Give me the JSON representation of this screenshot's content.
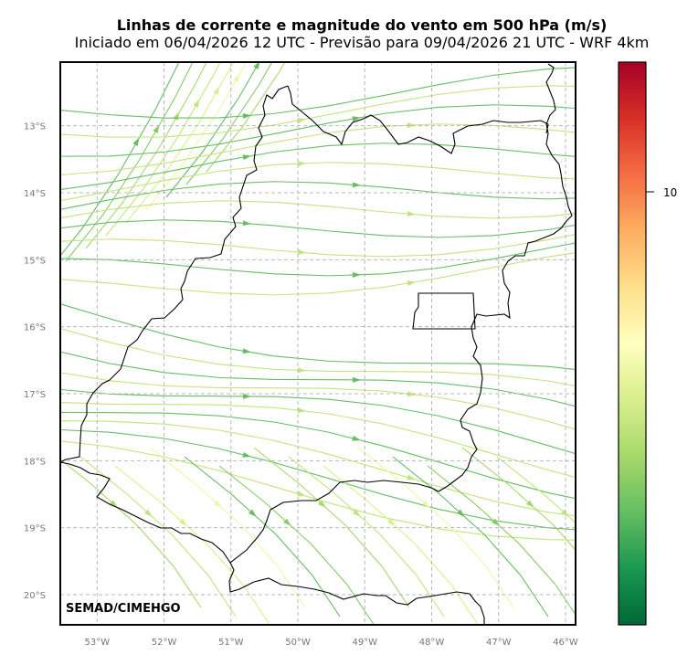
{
  "header": {
    "title": "Linhas de corrente e magnitude do vento em 500 hPa (m/s)",
    "subtitle": "Iniciado em 06/04/2026 12 UTC - Previsão para 09/04/2026 21 UTC - WRF 4km"
  },
  "map": {
    "lon_range": [
      -53.55,
      -45.85
    ],
    "lat_range": [
      -20.45,
      -12.05
    ],
    "lon_ticks": [
      -53,
      -52,
      -51,
      -50,
      -49,
      -48,
      -47,
      -46
    ],
    "lon_tick_labels": [
      "53°W",
      "52°W",
      "51°W",
      "50°W",
      "49°W",
      "48°W",
      "47°W",
      "46°W"
    ],
    "lat_ticks": [
      -13,
      -14,
      -15,
      -16,
      -17,
      -18,
      -19,
      -20
    ],
    "lat_tick_labels": [
      "13°S",
      "14°S",
      "15°S",
      "16°S",
      "17°S",
      "18°S",
      "19°S",
      "20°S"
    ],
    "gridlines": true,
    "credit": "SEMAD/CIMEHGO"
  },
  "colorbar": {
    "colormap": "RdYlGn_r",
    "tick_labels": [
      "10"
    ],
    "colors": [
      "#006837",
      "#1a9850",
      "#66bd63",
      "#a6d96a",
      "#d9ef8b",
      "#ffffbf",
      "#fee08b",
      "#fdae61",
      "#f46d43",
      "#d73027",
      "#a50026"
    ]
  }
}
